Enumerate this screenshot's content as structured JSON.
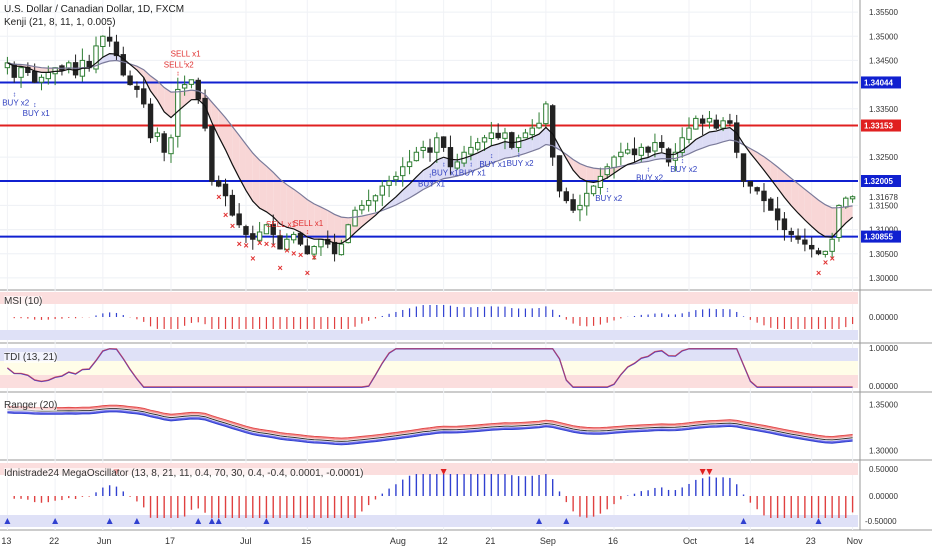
{
  "header": {
    "title": "U.S. Dollar / Canadian Dollar, 1D, FXCM",
    "indicator": "Kenji (21, 8, 11, 1, 0.005)"
  },
  "panes": {
    "msi": {
      "title": "MSI (10)",
      "ticks": [
        "0.00000"
      ]
    },
    "tdi": {
      "title": "TDI (13, 21)",
      "ticks": [
        "1.00000",
        "0.00000"
      ]
    },
    "ranger": {
      "title": "Ranger (20)",
      "ticks": [
        "1.35000",
        "1.30000"
      ]
    },
    "mega": {
      "title": "Idnistrade24 MegaOscillator (13, 8, 21, 11, 0.4, 70, 30, 0.4, -0.4, 0.0001, -0.0001)",
      "ticks": [
        "0.50000",
        "0.00000",
        "-0.50000"
      ]
    }
  },
  "colors": {
    "up": "#2e7d32",
    "down": "#222222",
    "blue_level": "#1020d0",
    "red_level": "#e02020",
    "kenji_fast": "#111111",
    "kenji_slow": "#7a7a9a",
    "cloud_up": "#dcdcf5",
    "cloud_down": "#f8d6d6",
    "signal_text": "#e03030",
    "buy_text": "#3040c0",
    "osc_pos": "#3040d0",
    "osc_neg": "#e04040"
  },
  "chart_data": {
    "type": "candlestick",
    "symbol": "USDCAD",
    "ylim": [
      1.2975,
      1.3575
    ],
    "price_ticks": [
      "1.35500",
      "1.35000",
      "1.34500",
      "1.34044",
      "1.33500",
      "1.33153",
      "1.32500",
      "1.32005",
      "1.31678",
      "1.31500",
      "1.31000",
      "1.30855",
      "1.30500",
      "1.30000"
    ],
    "x_labels": [
      {
        "label": "13",
        "idx": 0
      },
      {
        "label": "22",
        "idx": 7
      },
      {
        "label": "Jun",
        "idx": 14
      },
      {
        "label": "17",
        "idx": 24
      },
      {
        "label": "Jul",
        "idx": 35
      },
      {
        "label": "15",
        "idx": 44
      },
      {
        "label": "Aug",
        "idx": 57
      },
      {
        "label": "12",
        "idx": 64
      },
      {
        "label": "21",
        "idx": 71
      },
      {
        "label": "Sep",
        "idx": 79
      },
      {
        "label": "16",
        "idx": 89
      },
      {
        "label": "Oct",
        "idx": 100
      },
      {
        "label": "14",
        "idx": 109
      },
      {
        "label": "23",
        "idx": 118
      },
      {
        "label": "Nov",
        "idx": 124
      }
    ],
    "levels": [
      {
        "price": 1.34044,
        "color": "blue",
        "label": "1.34044"
      },
      {
        "price": 1.33153,
        "color": "red",
        "label": "1.33153"
      },
      {
        "price": 1.32005,
        "color": "blue",
        "label": "1.32005"
      },
      {
        "price": 1.30855,
        "color": "blue",
        "label": "1.30855"
      }
    ],
    "last_price": {
      "value": "1.31678"
    },
    "closes": [
      1.3445,
      1.3415,
      1.3435,
      1.3425,
      1.3405,
      1.3415,
      1.3425,
      1.3435,
      1.343,
      1.3445,
      1.342,
      1.345,
      1.3435,
      1.348,
      1.35,
      1.349,
      1.346,
      1.342,
      1.34,
      1.339,
      1.336,
      1.329,
      1.33,
      1.326,
      1.329,
      1.339,
      1.34,
      1.341,
      1.337,
      1.331,
      1.32,
      1.319,
      1.317,
      1.313,
      1.311,
      1.309,
      1.308,
      1.3095,
      1.311,
      1.309,
      1.306,
      1.308,
      1.309,
      1.307,
      1.305,
      1.3065,
      1.308,
      1.307,
      1.305,
      1.307,
      1.311,
      1.314,
      1.315,
      1.316,
      1.317,
      1.319,
      1.32,
      1.321,
      1.323,
      1.324,
      1.326,
      1.327,
      1.326,
      1.329,
      1.327,
      1.323,
      1.324,
      1.326,
      1.327,
      1.328,
      1.329,
      1.33,
      1.329,
      1.33,
      1.327,
      1.329,
      1.33,
      1.331,
      1.332,
      1.336,
      1.325,
      1.318,
      1.316,
      1.314,
      1.315,
      1.3175,
      1.319,
      1.321,
      1.323,
      1.325,
      1.326,
      1.3265,
      1.3255,
      1.327,
      1.326,
      1.328,
      1.327,
      1.324,
      1.326,
      1.329,
      1.331,
      1.333,
      1.332,
      1.333,
      1.331,
      1.3325,
      1.332,
      1.326,
      1.32,
      1.319,
      1.318,
      1.316,
      1.314,
      1.312,
      1.31,
      1.309,
      1.308,
      1.307,
      1.306,
      1.305,
      1.3055,
      1.308,
      1.315,
      1.3165,
      1.3168
    ],
    "signals": [
      {
        "text": "SELL x2",
        "idx": 25,
        "type": "sell"
      },
      {
        "text": "SELL x1",
        "idx": 26,
        "type": "sell"
      },
      {
        "text": "SELL x1",
        "idx": 40,
        "type": "sell"
      },
      {
        "text": "SELL x1",
        "idx": 44,
        "type": "sell"
      },
      {
        "text": "BUY x2",
        "idx": 1,
        "type": "buy"
      },
      {
        "text": "BUY x1",
        "idx": 4,
        "type": "buy"
      },
      {
        "text": "BUY x1",
        "idx": 64,
        "type": "buy"
      },
      {
        "text": "BUY x1",
        "idx": 62,
        "type": "buy"
      },
      {
        "text": "BUY x1",
        "idx": 68,
        "type": "buy"
      },
      {
        "text": "BUY x1",
        "idx": 71,
        "type": "buy"
      },
      {
        "text": "BUY x2",
        "idx": 75,
        "type": "buy"
      },
      {
        "text": "BUY x2",
        "idx": 88,
        "type": "buy"
      },
      {
        "text": "BUY x2",
        "idx": 94,
        "type": "buy"
      },
      {
        "text": "BUY x2",
        "idx": 99,
        "type": "buy"
      }
    ]
  }
}
